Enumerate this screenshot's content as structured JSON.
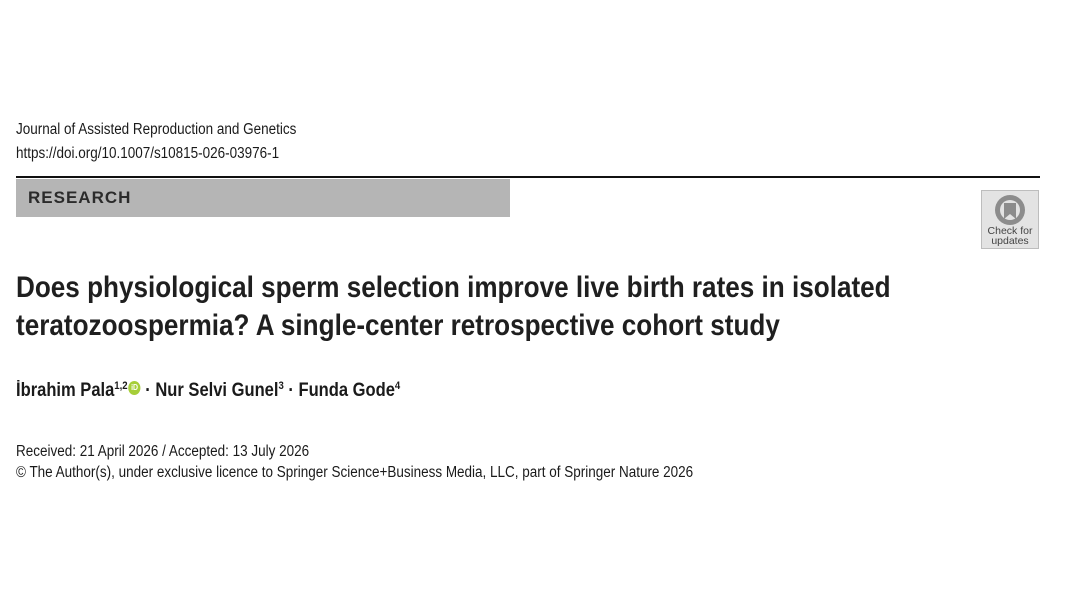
{
  "header": {
    "journal": "Journal of Assisted Reproduction and Genetics",
    "doi": "https://doi.org/10.1007/s10815-026-03976-1",
    "section": "RESEARCH",
    "badge": {
      "lines": [
        "Check for",
        "updates"
      ]
    }
  },
  "article": {
    "title_lines": [
      "Does physiological sperm selection improve live birth rates in isolated",
      "teratozoospermia? A single-center retrospective cohort study"
    ],
    "authors": [
      {
        "name": "İbrahim Pala",
        "affiliations": "1,2",
        "orcid": "iD"
      },
      {
        "name": "Nur Selvi Gunel",
        "affiliations": "3"
      },
      {
        "name": "Funda Gode",
        "affiliations": "4"
      }
    ],
    "author_separator": "·",
    "dates": "Received: 21 April 2026 / Accepted: 13 July 2026",
    "copyright": "© The Author(s), under exclusive licence to Springer Science+Business Media, LLC, part of Springer Nature 2026"
  }
}
